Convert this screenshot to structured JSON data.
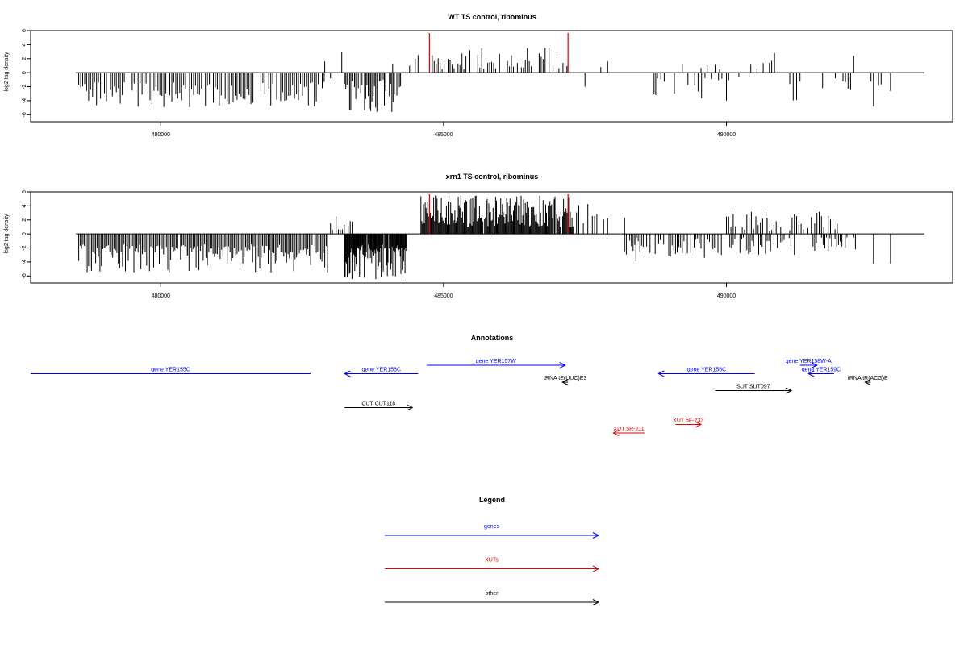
{
  "chart_data": [
    {
      "type": "bar",
      "title": "WT TS control, ribominus",
      "xlabel": "",
      "ylabel": "log2 tag density",
      "xlim": [
        477700,
        494000
      ],
      "ylim": [
        -7,
        6
      ],
      "xticks": [
        480000,
        485000,
        490000
      ],
      "xtick_labels": [
        "480000",
        "485000",
        "490000"
      ],
      "yticks": [
        -6,
        -4,
        -2,
        0,
        2,
        4,
        6
      ],
      "ytick_labels": [
        "-6",
        "-4",
        "-2",
        "0",
        "2",
        "4",
        "6"
      ],
      "baseline": 0,
      "baseline_span": [
        478500,
        493500
      ],
      "markers": [
        {
          "x": 484750,
          "color": "#e00000"
        },
        {
          "x": 487200,
          "color": "#e00000"
        }
      ],
      "density_regions": [
        {
          "from": 478550,
          "to": 482900,
          "sign": -1,
          "min": 1.3,
          "max": 5.0,
          "every": 35,
          "keep": 0.85
        },
        {
          "from": 483250,
          "to": 484250,
          "sign": -1,
          "min": 1.0,
          "max": 5.7,
          "every": 22,
          "keep": 0.85
        },
        {
          "from": 484800,
          "to": 487200,
          "sign": 1,
          "min": 0.5,
          "max": 3.6,
          "every": 35,
          "keep": 0.75
        },
        {
          "from": 488300,
          "to": 491300,
          "sign": -1,
          "min": 0.5,
          "max": 4.0,
          "every": 60,
          "keep": 0.35
        },
        {
          "from": 489000,
          "to": 491000,
          "sign": 1,
          "min": 0.4,
          "max": 1.5,
          "every": 110,
          "keep": 0.35
        },
        {
          "from": 491700,
          "to": 492800,
          "sign": -1,
          "min": 0.6,
          "max": 2.5,
          "every": 45,
          "keep": 0.45
        }
      ],
      "bars": [
        {
          "x": 482900,
          "v": 1.6
        },
        {
          "x": 483200,
          "v": 3.0
        },
        {
          "x": 483000,
          "v": -0.8
        },
        {
          "x": 484100,
          "v": 1.2
        },
        {
          "x": 484550,
          "v": 2.5
        },
        {
          "x": 484500,
          "v": 2.0
        },
        {
          "x": 484400,
          "v": 1.0
        },
        {
          "x": 487900,
          "v": 1.6
        },
        {
          "x": 487500,
          "v": -2.0
        },
        {
          "x": 487780,
          "v": 0.8
        },
        {
          "x": 488750,
          "v": -3.2
        },
        {
          "x": 490850,
          "v": 2.8
        },
        {
          "x": 490800,
          "v": 1.7
        },
        {
          "x": 490000,
          "v": -4.0
        },
        {
          "x": 492600,
          "v": -4.8
        },
        {
          "x": 492250,
          "v": 2.4
        },
        {
          "x": 492900,
          "v": -2.6
        },
        {
          "x": 489800,
          "v": 1.1
        }
      ]
    },
    {
      "type": "bar",
      "title": "xrn1 TS control, ribominus",
      "xlabel": "",
      "ylabel": "log2 tag density",
      "xlim": [
        477700,
        494000
      ],
      "ylim": [
        -7,
        6
      ],
      "xticks": [
        480000,
        485000,
        490000
      ],
      "xtick_labels": [
        "480000",
        "485000",
        "490000"
      ],
      "yticks": [
        -6,
        -4,
        -2,
        0,
        2,
        4,
        6
      ],
      "ytick_labels": [
        "-6",
        "-4",
        "-2",
        "0",
        "2",
        "4",
        "6"
      ],
      "baseline": 0,
      "baseline_span": [
        478500,
        493500
      ],
      "markers": [
        {
          "x": 484750,
          "color": "#e00000"
        },
        {
          "x": 487200,
          "color": "#e00000"
        }
      ],
      "density_regions": [
        {
          "from": 478550,
          "to": 482950,
          "sign": -1,
          "min": 1.5,
          "max": 5.5,
          "every": 25,
          "keep": 0.95
        },
        {
          "from": 483250,
          "to": 484350,
          "sign": -1,
          "min": 1.5,
          "max": 6.5,
          "every": 12,
          "keep": 0.95
        },
        {
          "from": 483000,
          "to": 483400,
          "sign": 1,
          "min": 0.5,
          "max": 2.2,
          "every": 35,
          "keep": 0.7
        },
        {
          "from": 484600,
          "to": 487300,
          "sign": 1,
          "min": 1.0,
          "max": 5.5,
          "every": 15,
          "keep": 0.95
        },
        {
          "from": 487350,
          "to": 487900,
          "sign": 1,
          "min": 0.8,
          "max": 4.5,
          "every": 40,
          "keep": 0.7
        },
        {
          "from": 488200,
          "to": 491200,
          "sign": -1,
          "min": 0.5,
          "max": 3.5,
          "every": 30,
          "keep": 0.75
        },
        {
          "from": 490000,
          "to": 492000,
          "sign": 1,
          "min": 0.4,
          "max": 3.2,
          "every": 40,
          "keep": 0.7
        },
        {
          "from": 491500,
          "to": 492300,
          "sign": -1,
          "min": 0.5,
          "max": 2.5,
          "every": 30,
          "keep": 0.7
        }
      ],
      "bars": [
        {
          "x": 483100,
          "v": 2.5
        },
        {
          "x": 487900,
          "v": 2.2
        },
        {
          "x": 488400,
          "v": -3.9
        },
        {
          "x": 490700,
          "v": 3.1
        },
        {
          "x": 491500,
          "v": 2.4
        },
        {
          "x": 492600,
          "v": -4.3
        },
        {
          "x": 492900,
          "v": -4.3
        },
        {
          "x": 488200,
          "v": 2.3
        },
        {
          "x": 490100,
          "v": 3.3
        }
      ]
    }
  ],
  "annotations": {
    "title": "Annotations",
    "items": [
      {
        "label": "gene YER155C",
        "color": "#0000ff",
        "dir": "none",
        "x1": 477700,
        "x2": 482650,
        "row": 1
      },
      {
        "label": "gene YER156C",
        "color": "#0000ff",
        "dir": "left",
        "x1": 483250,
        "x2": 484550,
        "row": 1
      },
      {
        "label": "gene YER157W",
        "color": "#0000ff",
        "dir": "right",
        "x1": 484700,
        "x2": 487150,
        "row": 0
      },
      {
        "label": "gene YER158C",
        "color": "#0000ff",
        "dir": "left",
        "x1": 488800,
        "x2": 490500,
        "row": 1
      },
      {
        "label": "gene YER158W-A",
        "color": "#0000ff",
        "dir": "right",
        "x1": 491300,
        "x2": 491600,
        "row": 0
      },
      {
        "label": "gene YER159C",
        "color": "#0000ff",
        "dir": "left",
        "x1": 491450,
        "x2": 491900,
        "row": 1
      },
      {
        "label": "tRNA tE(UUC)E3",
        "color": "#000000",
        "dir": "left",
        "x1": 487100,
        "x2": 487200,
        "row": 2
      },
      {
        "label": "tRNA tR(ACG)E",
        "color": "#000000",
        "dir": "left",
        "x1": 492450,
        "x2": 492550,
        "row": 2
      },
      {
        "label": "SUT SUT097",
        "color": "#000000",
        "dir": "right",
        "x1": 489800,
        "x2": 491150,
        "row": 3
      },
      {
        "label": "CUT CUT118",
        "color": "#000000",
        "dir": "right",
        "x1": 483250,
        "x2": 484450,
        "row": 5
      },
      {
        "label": "XUT 5F-233",
        "color": "#e00000",
        "dir": "right",
        "x1": 489100,
        "x2": 489550,
        "row": 7
      },
      {
        "label": "XUT 5R-211",
        "color": "#e00000",
        "dir": "left",
        "x1": 488000,
        "x2": 488550,
        "row": 8
      }
    ]
  },
  "legend": {
    "title": "Legend",
    "items": [
      {
        "label": "genes",
        "color": "#0000ff"
      },
      {
        "label": "XUTs",
        "color": "#e00000"
      },
      {
        "label": "other",
        "color": "#000000"
      }
    ]
  }
}
